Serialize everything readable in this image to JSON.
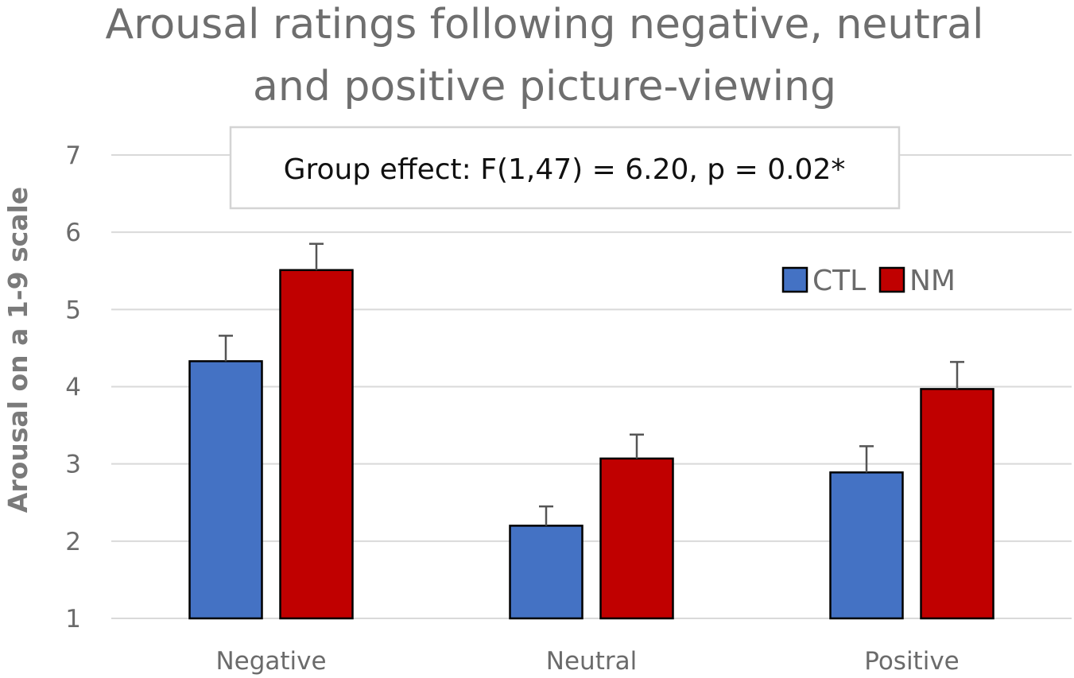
{
  "chart_data": {
    "type": "bar",
    "title_lines": [
      "Arousal ratings following negative, neutral",
      "and positive picture-viewing"
    ],
    "xlabel": "",
    "ylabel": "Arousal on a 1-9 scale",
    "ylim": [
      1,
      7
    ],
    "yticks": [
      "1",
      "2",
      "3",
      "4",
      "5",
      "6",
      "7"
    ],
    "grid": true,
    "categories": [
      "Negative",
      "Neutral",
      "Positive"
    ],
    "series": [
      {
        "name": "CTL",
        "color": "#4472c4",
        "values": [
          4.33,
          2.2,
          2.89
        ],
        "errors": [
          0.33,
          0.25,
          0.34
        ]
      },
      {
        "name": "NM",
        "color": "#c00000",
        "values": [
          5.51,
          3.07,
          3.97
        ],
        "errors": [
          0.34,
          0.31,
          0.35
        ]
      }
    ],
    "legend_position": "top-right",
    "annotation": "Group effect: F(1,47) = 6.20, p = 0.02*"
  }
}
